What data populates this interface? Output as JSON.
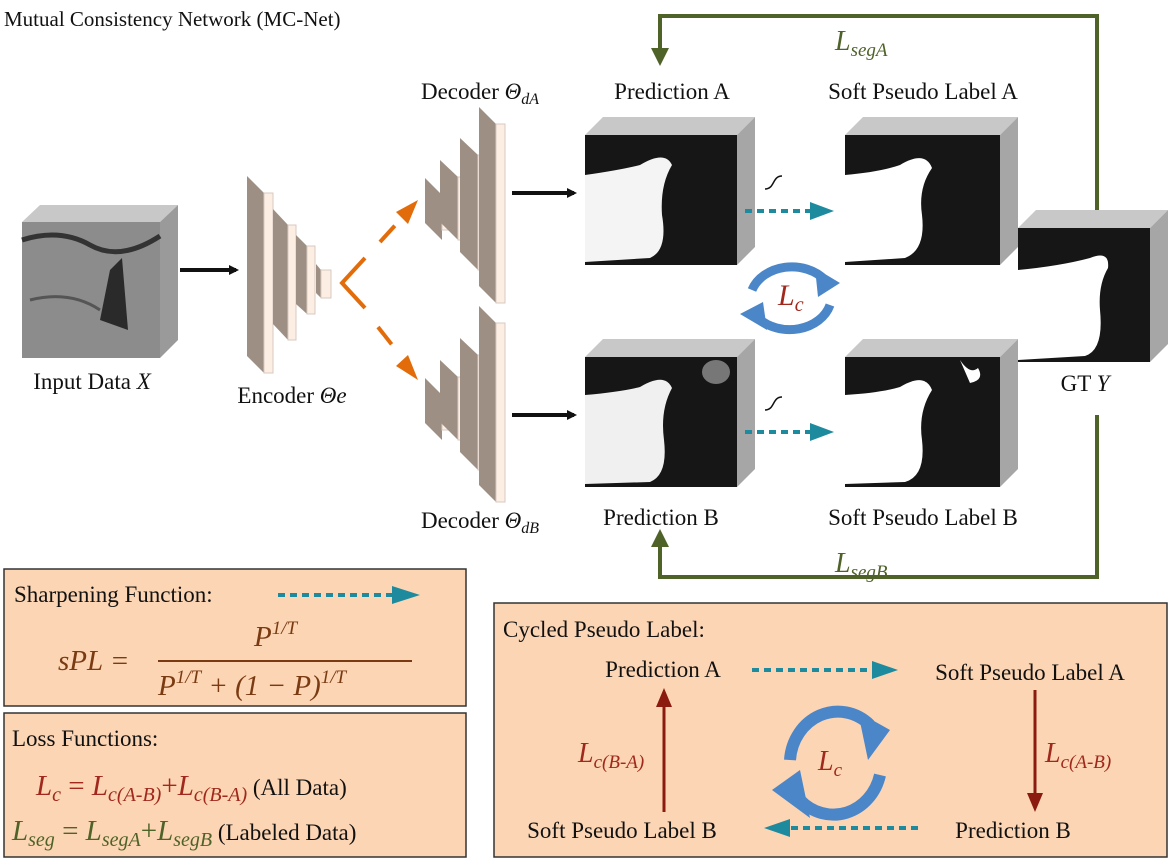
{
  "title": "Mutual Consistency Network (MC-Net)",
  "input": {
    "label": "Input Data ",
    "var": "X"
  },
  "encoder": {
    "label": "Encoder ",
    "var": "Θe"
  },
  "decoder_a": {
    "label": "Decoder ",
    "var": "Θ",
    "sub": "dA"
  },
  "decoder_b": {
    "label": "Decoder ",
    "var": "Θ",
    "sub": "dB"
  },
  "prediction_a": "Prediction A",
  "prediction_b": "Prediction B",
  "soft_a": "Soft Pseudo Label A",
  "soft_b": "Soft Pseudo Label B",
  "gt": {
    "label": "GT ",
    "var": "Y"
  },
  "loss_seg_a": {
    "main": "L",
    "sub": "segA"
  },
  "loss_seg_b": {
    "main": "L",
    "sub": "segB"
  },
  "loss_c": {
    "main": "L",
    "sub": "c"
  },
  "sharpening": {
    "heading": "Sharpening Function:",
    "lhs": "sPL =",
    "numerator": "P",
    "exp": "1/T",
    "denominator_a": "P",
    "denominator_b": " + (1 − P)"
  },
  "loss_functions": {
    "heading": "Loss Functions:",
    "line1": {
      "lhs": "L",
      "lhs_sub": "c",
      "eq": " = ",
      "t1": "L",
      "t1_sub": "c(A-B)",
      "plus": "+",
      "t2": "L",
      "t2_sub": "c(B-A)",
      "note": " (All Data)"
    },
    "line2": {
      "lhs": "L",
      "lhs_sub": "seg",
      "eq": " = ",
      "t1": "L",
      "t1_sub": "segA",
      "plus": "+",
      "t2": "L",
      "t2_sub": "segB",
      "note": " (Labeled Data)"
    }
  },
  "cycled": {
    "heading": "Cycled Pseudo Label:",
    "pred_a": "Prediction A",
    "soft_a": "Soft Pseudo Label A",
    "pred_b": "Prediction B",
    "soft_b": "Soft Pseudo Label B",
    "l_ab": {
      "main": "L",
      "sub": "c(A-B)"
    },
    "l_ba": {
      "main": "L",
      "sub": "c(B-A)"
    },
    "l_c": {
      "main": "L",
      "sub": "c"
    }
  },
  "colors": {
    "box_fill": "#fcd5b4",
    "loss_red": "#a0281c",
    "loss_green": "#4f6228",
    "formula_brown": "#7a3b12",
    "dashed_teal": "#1e8a9e",
    "orange": "#e36c0a",
    "cycle_blue": "#4a86c8"
  }
}
